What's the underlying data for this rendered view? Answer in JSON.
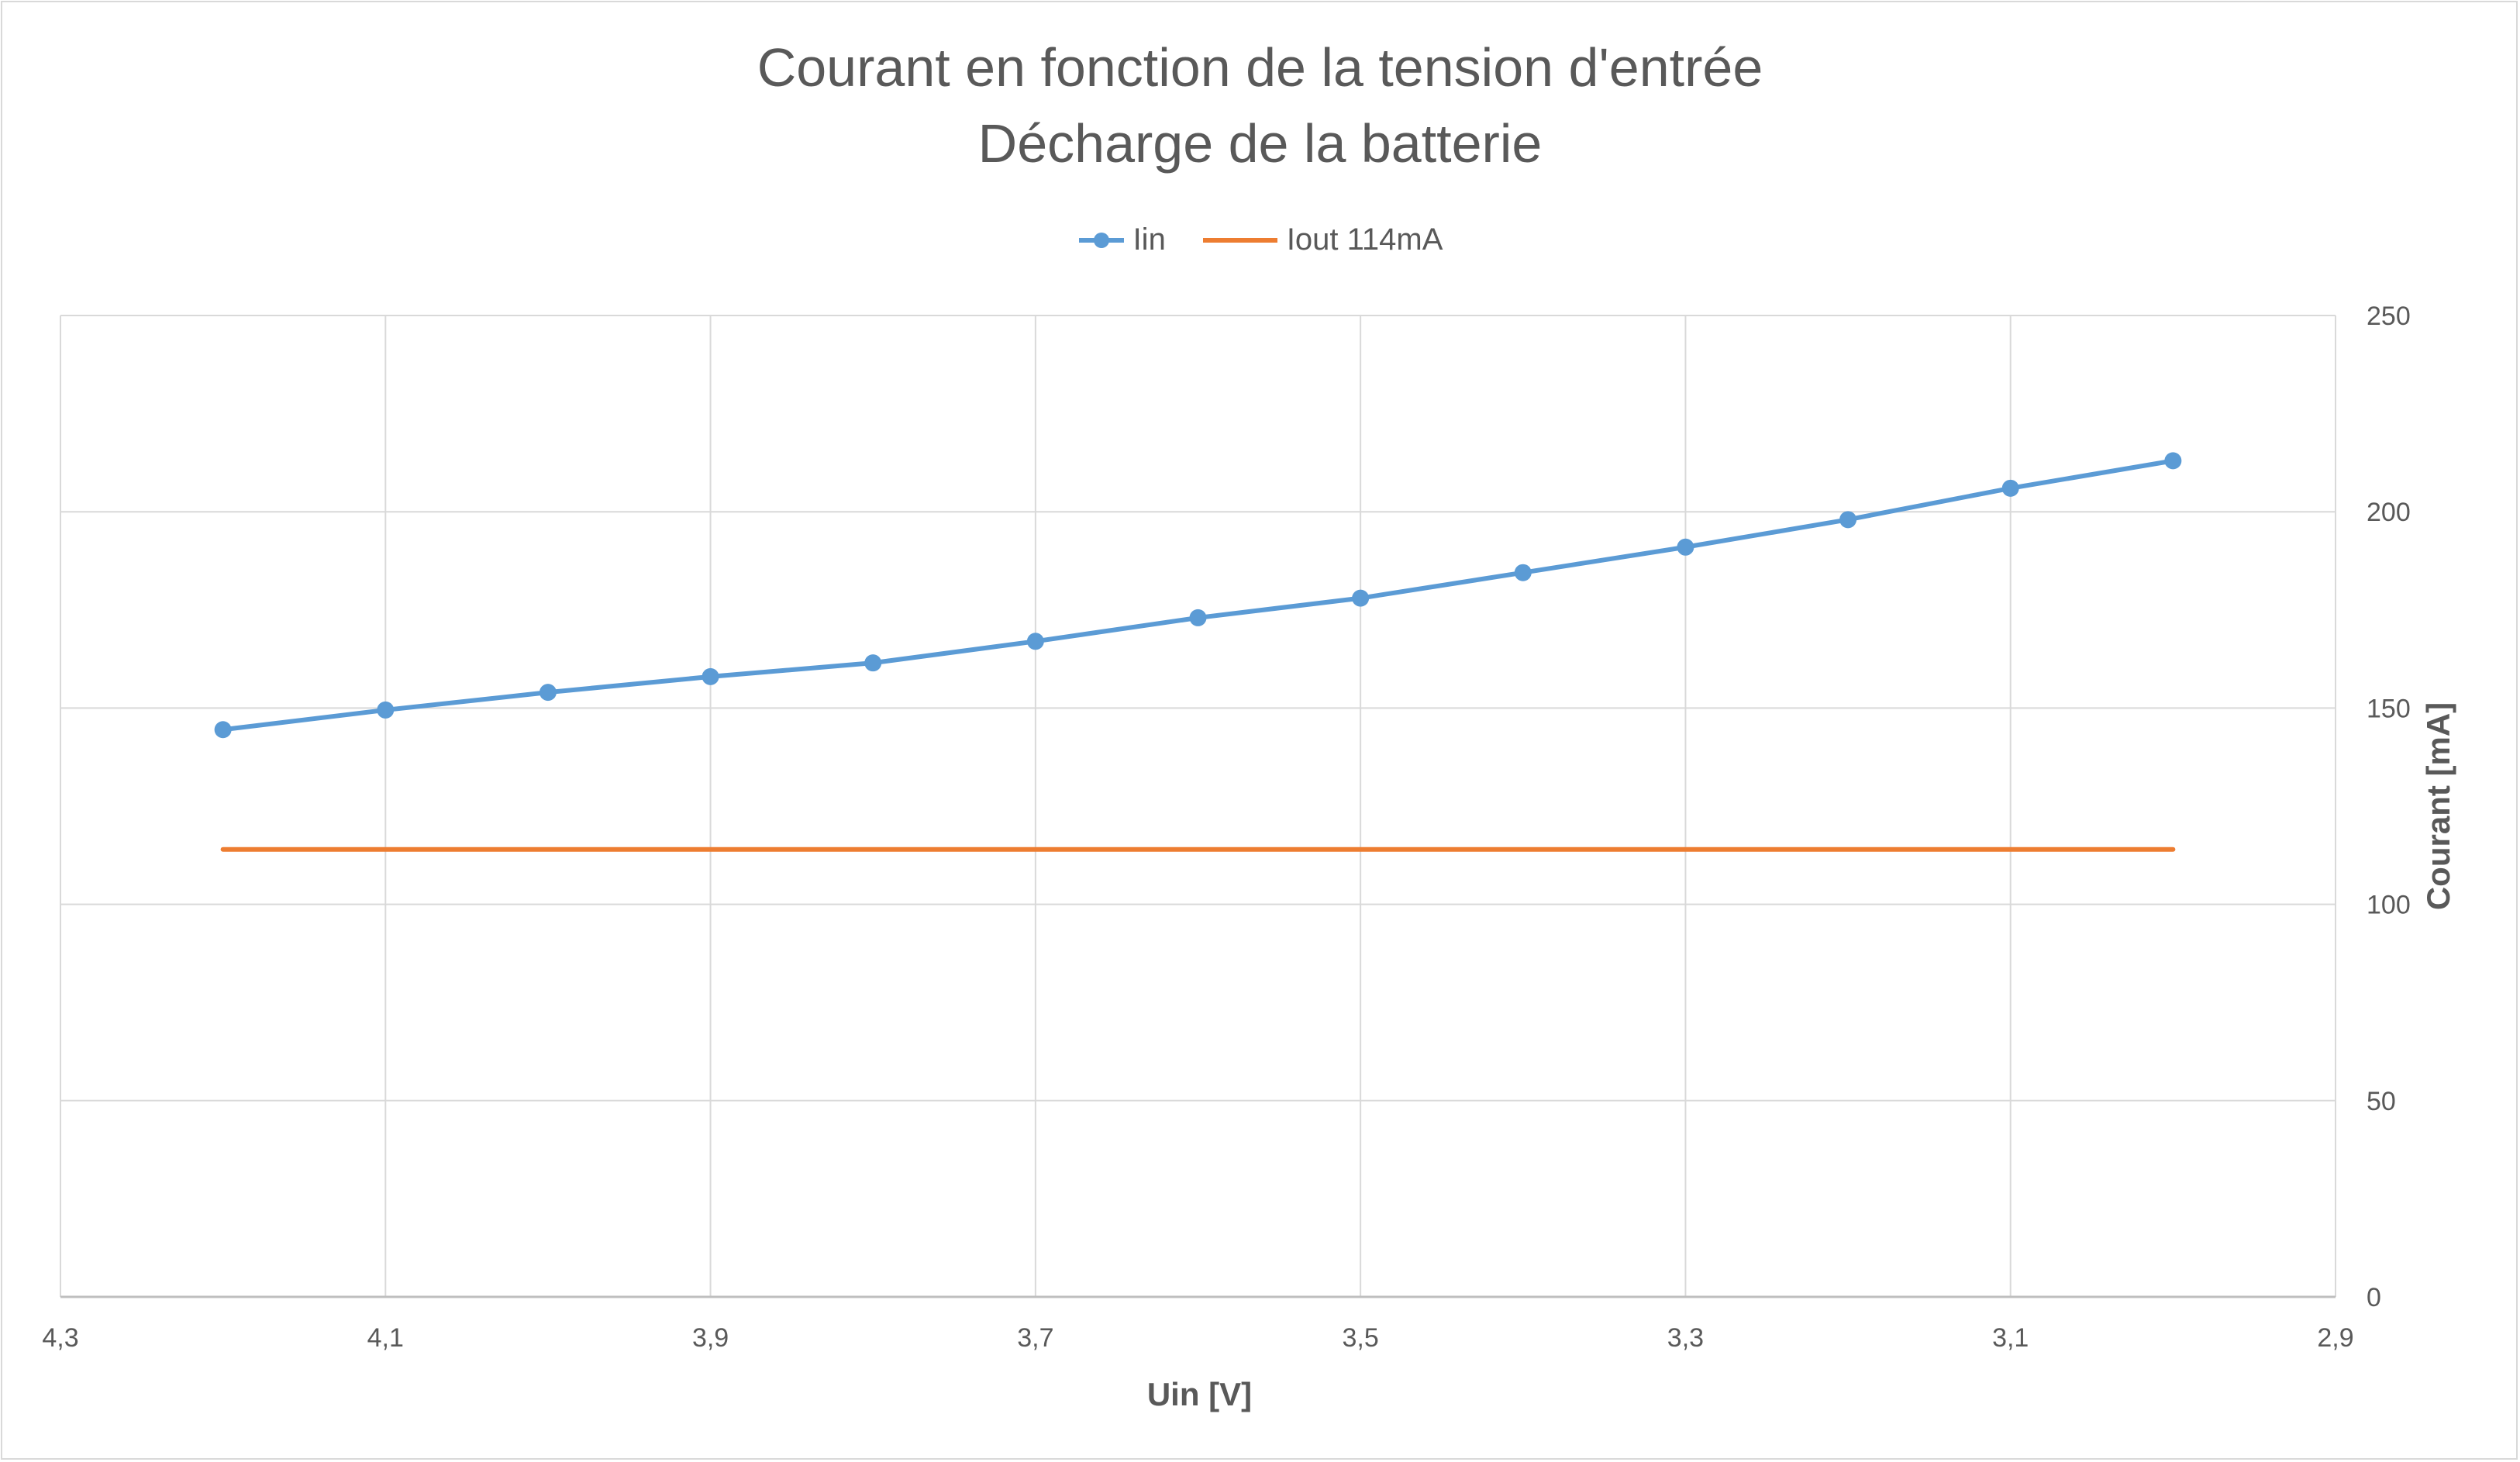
{
  "chart_data": {
    "type": "line",
    "title": "Courant en fonction de la tension d'entrée",
    "subtitle": "Décharge de la batterie",
    "xlabel": "Uin [V]",
    "ylabel": "Courant [mA]",
    "x_reversed": true,
    "xlim": [
      2.9,
      4.3
    ],
    "ylim": [
      0,
      250
    ],
    "y_axis_position": "right",
    "x_ticks": [
      "4,3",
      "4,1",
      "3,9",
      "3,7",
      "3,5",
      "3,3",
      "3,1",
      "2,9"
    ],
    "x_tick_values": [
      4.3,
      4.1,
      3.9,
      3.7,
      3.5,
      3.3,
      3.1,
      2.9
    ],
    "y_ticks": [
      "0",
      "50",
      "100",
      "150",
      "200",
      "250"
    ],
    "y_tick_values": [
      0,
      50,
      100,
      150,
      200,
      250
    ],
    "grid": true,
    "legend_position": "top",
    "series": [
      {
        "name": "Iin",
        "color": "#5b9bd5",
        "marker": "circle",
        "x": [
          4.2,
          4.1,
          4.0,
          3.9,
          3.8,
          3.7,
          3.6,
          3.5,
          3.4,
          3.3,
          3.2,
          3.1,
          3.0
        ],
        "values": [
          144.5,
          149.5,
          154,
          158,
          161.5,
          167,
          173,
          178,
          184.5,
          191,
          198,
          206,
          213
        ]
      },
      {
        "name": "Iout 114mA",
        "color": "#ed7d31",
        "marker": "none",
        "x": [
          4.2,
          3.0
        ],
        "values": [
          114,
          114
        ]
      }
    ]
  }
}
